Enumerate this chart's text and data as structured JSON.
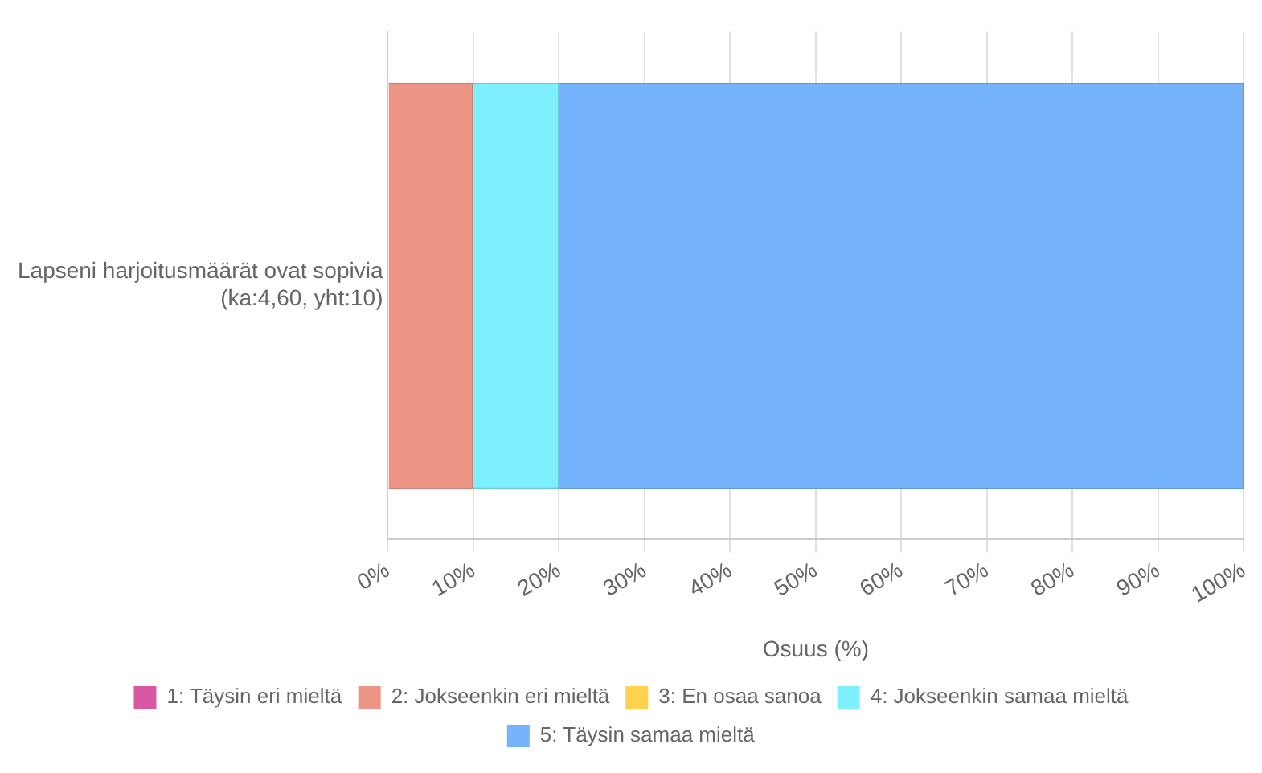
{
  "chart_data": {
    "type": "bar",
    "orientation": "horizontal",
    "stacked": true,
    "categories": [
      "Lapseni harjoitusmäärät ovat sopivia\n(ka:4,60, yht:10)"
    ],
    "series": [
      {
        "name": "1: Täysin eri mieltä",
        "color": "#d958a4",
        "values": [
          0
        ]
      },
      {
        "name": "2: Jokseenkin eri mieltä",
        "color": "#ec9585",
        "values": [
          10
        ]
      },
      {
        "name": "3: En osaa sanoa",
        "color": "#fcd24f",
        "values": [
          0
        ]
      },
      {
        "name": "4: Jokseenkin samaa mieltä",
        "color": "#7eeffc",
        "values": [
          10
        ]
      },
      {
        "name": "5: Täysin samaa mieltä",
        "color": "#75b4fc",
        "values": [
          80
        ]
      }
    ],
    "xlabel": "Osuus (%)",
    "xlim": [
      0,
      100
    ],
    "xticks": [
      {
        "value": 0,
        "label": "0%"
      },
      {
        "value": 10,
        "label": "10%"
      },
      {
        "value": 20,
        "label": "20%"
      },
      {
        "value": 30,
        "label": "30%"
      },
      {
        "value": 40,
        "label": "40%"
      },
      {
        "value": 50,
        "label": "50%"
      },
      {
        "value": 60,
        "label": "60%"
      },
      {
        "value": 70,
        "label": "70%"
      },
      {
        "value": 80,
        "label": "80%"
      },
      {
        "value": 90,
        "label": "90%"
      },
      {
        "value": 100,
        "label": "100%"
      }
    ],
    "grid": "x",
    "legend": "bottom"
  }
}
